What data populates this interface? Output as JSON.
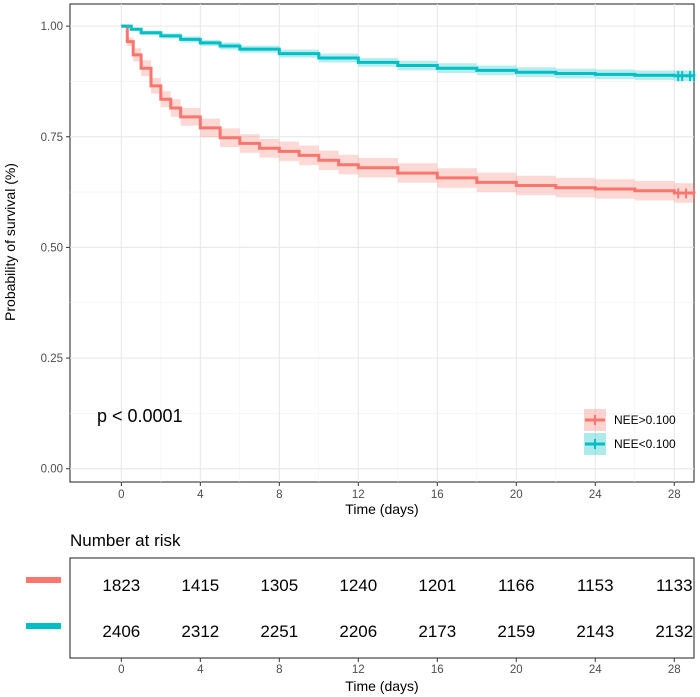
{
  "chart_data": {
    "type": "line",
    "subtype": "kaplan-meier",
    "xlabel": "Time (days)",
    "ylabel": "Probability of survival (%)",
    "xlim": [
      -2.6,
      29
    ],
    "ylim": [
      -0.03,
      1.05
    ],
    "x_ticks": [
      "0",
      "4",
      "8",
      "12",
      "16",
      "20",
      "24",
      "28"
    ],
    "x_tick_values": [
      0,
      4,
      8,
      12,
      16,
      20,
      24,
      28
    ],
    "y_ticks": [
      "0.00",
      "0.25",
      "0.50",
      "0.75",
      "1.00"
    ],
    "y_tick_values": [
      0,
      0.25,
      0.5,
      0.75,
      1.0
    ],
    "grid": true,
    "legend_position": "bottom-right",
    "annotation": "p < 0.0001",
    "series": [
      {
        "name": "NEE>0.100",
        "color": "#F8766D",
        "band_color": "#F8766D",
        "x": [
          0,
          0.3,
          0.6,
          1,
          1.5,
          2,
          2.5,
          3,
          4,
          5,
          6,
          7,
          8,
          9,
          10,
          11,
          12,
          14,
          16,
          18,
          20,
          22,
          24,
          26,
          28,
          29
        ],
        "y": [
          1.0,
          0.965,
          0.935,
          0.905,
          0.865,
          0.835,
          0.815,
          0.795,
          0.77,
          0.748,
          0.735,
          0.724,
          0.717,
          0.708,
          0.697,
          0.687,
          0.68,
          0.668,
          0.657,
          0.647,
          0.64,
          0.635,
          0.632,
          0.628,
          0.623,
          0.622
        ],
        "lower": [
          1.0,
          0.955,
          0.92,
          0.887,
          0.847,
          0.817,
          0.795,
          0.775,
          0.749,
          0.727,
          0.714,
          0.703,
          0.695,
          0.686,
          0.675,
          0.665,
          0.658,
          0.646,
          0.635,
          0.625,
          0.618,
          0.613,
          0.61,
          0.606,
          0.601,
          0.6
        ],
        "upper": [
          1.0,
          0.975,
          0.95,
          0.923,
          0.883,
          0.853,
          0.835,
          0.815,
          0.791,
          0.769,
          0.756,
          0.745,
          0.739,
          0.73,
          0.719,
          0.709,
          0.702,
          0.69,
          0.679,
          0.669,
          0.662,
          0.657,
          0.654,
          0.65,
          0.645,
          0.644
        ],
        "censor_x": [
          28.2,
          28.6,
          29.0
        ]
      },
      {
        "name": "NEE<0.100",
        "color": "#00BFC4",
        "band_color": "#00BFC4",
        "x": [
          0,
          0.5,
          1,
          2,
          3,
          4,
          5,
          6,
          8,
          10,
          12,
          14,
          16,
          18,
          20,
          22,
          24,
          26,
          28,
          29
        ],
        "y": [
          1.0,
          0.993,
          0.985,
          0.978,
          0.97,
          0.962,
          0.955,
          0.948,
          0.938,
          0.928,
          0.918,
          0.911,
          0.905,
          0.9,
          0.896,
          0.893,
          0.891,
          0.889,
          0.888,
          0.887
        ],
        "lower": [
          1.0,
          0.989,
          0.98,
          0.972,
          0.963,
          0.955,
          0.947,
          0.94,
          0.929,
          0.918,
          0.908,
          0.9,
          0.894,
          0.889,
          0.885,
          0.882,
          0.88,
          0.878,
          0.876,
          0.875
        ],
        "upper": [
          1.0,
          0.997,
          0.99,
          0.984,
          0.977,
          0.969,
          0.963,
          0.956,
          0.947,
          0.938,
          0.928,
          0.922,
          0.916,
          0.911,
          0.907,
          0.904,
          0.902,
          0.9,
          0.9,
          0.899
        ],
        "censor_x": [
          28.2,
          28.4,
          28.8,
          29.0
        ]
      }
    ]
  },
  "risk_table": {
    "title": "Number at risk",
    "xlabel": "Time (days)",
    "rows": [
      {
        "name": "NEE>0.100",
        "color": "#F8766D",
        "values": [
          "1823",
          "1415",
          "1305",
          "1240",
          "1201",
          "1166",
          "1153",
          "1133"
        ]
      },
      {
        "name": "NEE<0.100",
        "color": "#00BFC4",
        "values": [
          "2406",
          "2312",
          "2251",
          "2206",
          "2173",
          "2159",
          "2143",
          "2132"
        ]
      }
    ]
  }
}
